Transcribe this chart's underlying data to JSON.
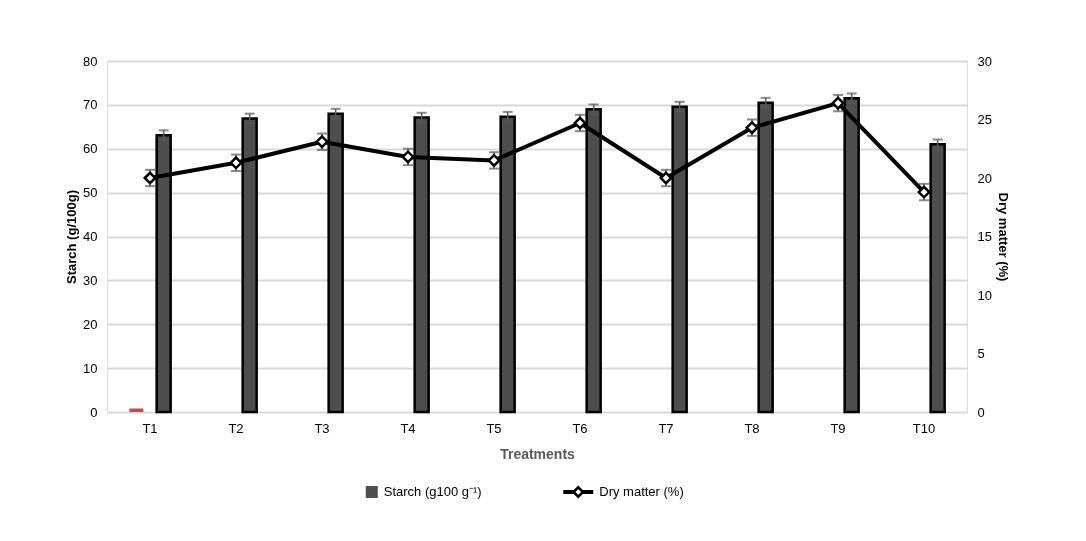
{
  "chart_data": {
    "type": "bar",
    "xlabel": "Treatments",
    "ylabel": "Starch (g/100g)",
    "y2label": "Dry matter (%)",
    "categories": [
      "T1",
      "T2",
      "T3",
      "T4",
      "T5",
      "T6",
      "T7",
      "T8",
      "T9",
      "T10"
    ],
    "series": [
      {
        "color": "#c0504d",
        "values": [
          0.8,
          null,
          null,
          null,
          null,
          null,
          null,
          null,
          null,
          null
        ]
      },
      {
        "name": "Starch (g100 g⁻¹)",
        "color": "#4d4d4d",
        "values": [
          63.1,
          66.9,
          68.0,
          67.1,
          67.3,
          69.0,
          69.6,
          70.5,
          71.5,
          61.0
        ],
        "errors": [
          1.1,
          1.1,
          1.1,
          1.1,
          1.1,
          1.1,
          1.1,
          1.1,
          1.1,
          1.1
        ]
      },
      {
        "type": "line",
        "axis": "y2",
        "name": "Dry matter (%)",
        "color": "#000000",
        "marker": "diamond",
        "values": [
          20.0,
          21.3,
          23.1,
          21.8,
          21.5,
          24.7,
          20.0,
          24.3,
          26.4,
          18.8
        ],
        "errors": [
          0.7,
          0.7,
          0.7,
          0.7,
          0.7,
          0.7,
          0.7,
          0.7,
          0.7,
          0.7
        ]
      }
    ],
    "ylim": [
      0,
      80
    ],
    "yticks": [
      0,
      10,
      20,
      30,
      40,
      50,
      60,
      70,
      80
    ],
    "y2lim": [
      0,
      30
    ],
    "y2ticks": [
      0,
      5,
      10,
      15,
      20,
      25,
      30
    ],
    "grid": "y",
    "legend": "bottom",
    "line_style": "solid"
  }
}
